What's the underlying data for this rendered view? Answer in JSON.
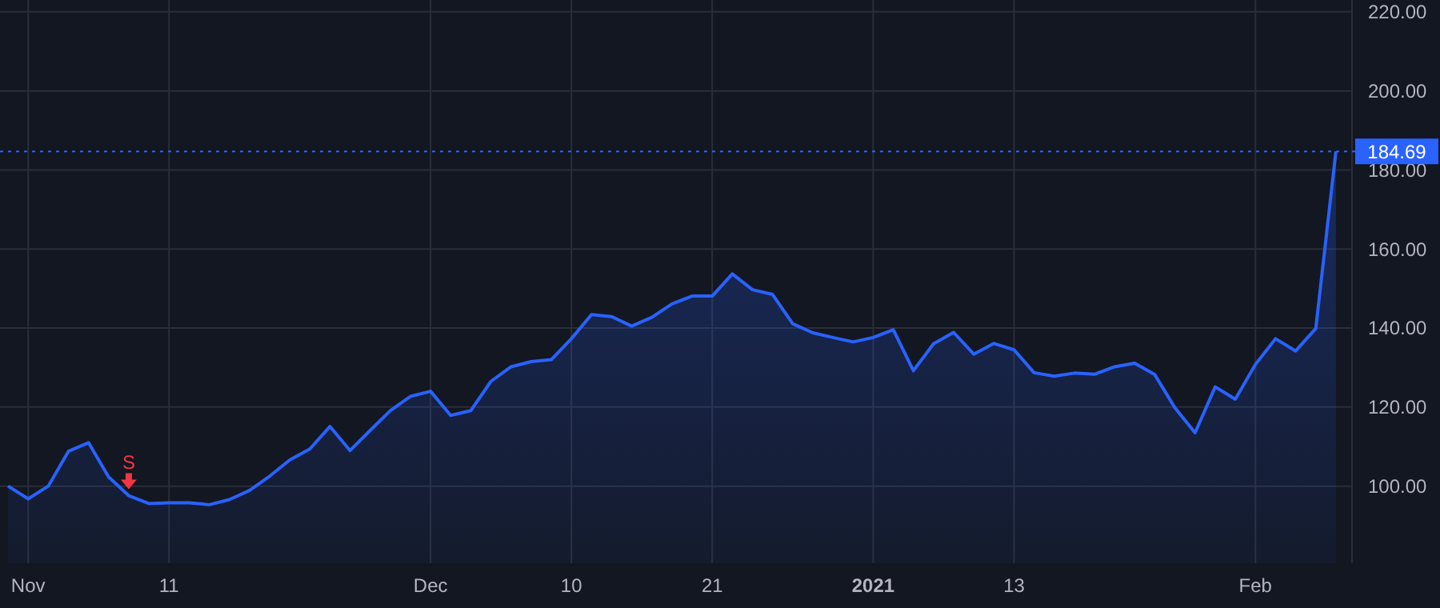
{
  "chart_data": {
    "type": "area",
    "categories": [
      null,
      "Nov",
      null,
      null,
      null,
      null,
      null,
      null,
      "11",
      null,
      null,
      null,
      null,
      null,
      null,
      null,
      null,
      null,
      null,
      null,
      null,
      "Dec",
      null,
      null,
      null,
      null,
      null,
      null,
      "10",
      null,
      null,
      null,
      null,
      null,
      null,
      "21",
      null,
      null,
      null,
      null,
      null,
      null,
      null,
      "2021",
      null,
      null,
      null,
      null,
      null,
      null,
      "13",
      null,
      null,
      null,
      null,
      null,
      null,
      null,
      null,
      null,
      null,
      null,
      "Feb",
      null,
      null,
      null,
      null
    ],
    "series": [
      {
        "color": "#2962ff",
        "values": [
          100.0,
          96.8,
          100.0,
          108.8,
          111.0,
          102.3,
          97.6,
          95.6,
          95.8,
          95.8,
          95.3,
          96.6,
          98.9,
          102.5,
          106.6,
          109.4,
          115.1,
          109.0,
          114.1,
          119.1,
          122.7,
          124.0,
          117.9,
          119.1,
          126.5,
          130.2,
          131.5,
          132.0,
          137.3,
          143.4,
          142.9,
          140.5,
          142.7,
          146.1,
          148.1,
          148.1,
          153.7,
          149.7,
          148.5,
          141.1,
          138.8,
          137.6,
          136.5,
          137.6,
          139.6,
          129.2,
          136.0,
          138.9,
          133.4,
          136.1,
          134.5,
          128.7,
          127.8,
          128.6,
          128.3,
          130.2,
          131.1,
          128.2,
          119.8,
          113.5,
          125.1,
          122.0,
          130.8,
          137.3,
          134.2,
          139.9,
          184.69
        ]
      }
    ],
    "ylim": [
      80.5,
      223
    ],
    "yticks": [
      {
        "value": 100,
        "label": "100.00"
      },
      {
        "value": 120,
        "label": "120.00"
      },
      {
        "value": 140,
        "label": "140.00"
      },
      {
        "value": 160,
        "label": "160.00"
      },
      {
        "value": 180,
        "label": "180.00"
      },
      {
        "value": 200,
        "label": "200.00"
      },
      {
        "value": 220,
        "label": "220.00"
      }
    ],
    "grid": true,
    "ref_lines": [
      {
        "axis": "y",
        "value": 184.69,
        "label": "184.69",
        "color": "#2962ff",
        "line_style": "dotted"
      }
    ],
    "annotations": [
      {
        "text": "S",
        "y": 97.6
      }
    ]
  }
}
